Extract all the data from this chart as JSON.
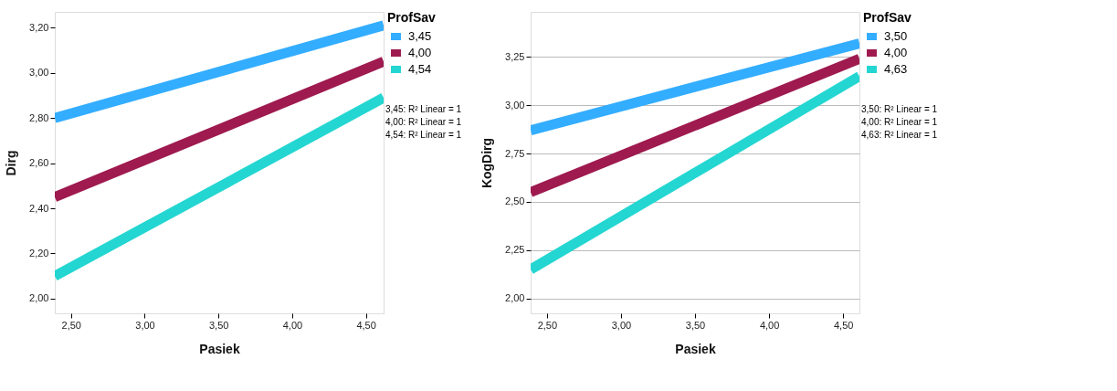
{
  "chart_data": [
    {
      "type": "line",
      "xlabel": "Pasiek",
      "ylabel": "Dirg",
      "legend_title": "ProfSav",
      "legend": "right",
      "grid": false,
      "marker": "none",
      "line_style": "solid",
      "x": [
        2.39,
        4.62
      ],
      "series": [
        {
          "name": "3,45",
          "color": "#33adff",
          "values": [
            2.8,
            3.21
          ]
        },
        {
          "name": "4,00",
          "color": "#9e1a4f",
          "values": [
            2.45,
            3.05
          ]
        },
        {
          "name": "4,54",
          "color": "#24d6d1",
          "values": [
            2.1,
            2.89
          ]
        }
      ],
      "xlim": [
        2.39,
        4.62
      ],
      "ylim": [
        1.935,
        3.27
      ],
      "xticks": [
        {
          "value": 2.5,
          "label": "2,50"
        },
        {
          "value": 3.0,
          "label": "3,00"
        },
        {
          "value": 3.5,
          "label": "3,50"
        },
        {
          "value": 4.0,
          "label": "4,00"
        },
        {
          "value": 4.5,
          "label": "4,50"
        }
      ],
      "yticks": [
        {
          "value": 2.0,
          "label": "2,00"
        },
        {
          "value": 2.2,
          "label": "2,20"
        },
        {
          "value": 2.4,
          "label": "2,40"
        },
        {
          "value": 2.6,
          "label": "2,60"
        },
        {
          "value": 2.8,
          "label": "2,80"
        },
        {
          "value": 3.0,
          "label": "3,00"
        },
        {
          "value": 3.2,
          "label": "3,20"
        }
      ],
      "annotations": [
        "3,45: R² Linear = 1",
        "4,00: R² Linear = 1",
        "4,54: R² Linear = 1"
      ]
    },
    {
      "type": "line",
      "xlabel": "Pasiek",
      "ylabel": "KogDirg",
      "legend_title": "ProfSav",
      "legend": "right",
      "grid": "y",
      "marker": "none",
      "line_style": "solid",
      "x": [
        2.39,
        4.61
      ],
      "series": [
        {
          "name": "3,50",
          "color": "#33adff",
          "values": [
            2.87,
            3.32
          ]
        },
        {
          "name": "4,00",
          "color": "#9e1a4f",
          "values": [
            2.55,
            3.24
          ]
        },
        {
          "name": "4,63",
          "color": "#24d6d1",
          "values": [
            2.15,
            3.15
          ]
        }
      ],
      "xlim": [
        2.39,
        4.61
      ],
      "ylim": [
        1.923,
        3.483
      ],
      "xticks": [
        {
          "value": 2.5,
          "label": "2,50"
        },
        {
          "value": 3.0,
          "label": "3,00"
        },
        {
          "value": 3.5,
          "label": "3,50"
        },
        {
          "value": 4.0,
          "label": "4,00"
        },
        {
          "value": 4.5,
          "label": "4,50"
        }
      ],
      "yticks": [
        {
          "value": 2.0,
          "label": "2,00"
        },
        {
          "value": 2.25,
          "label": "2,25"
        },
        {
          "value": 2.5,
          "label": "2,50"
        },
        {
          "value": 2.75,
          "label": "2,75"
        },
        {
          "value": 3.0,
          "label": "3,00"
        },
        {
          "value": 3.25,
          "label": "3,25"
        }
      ],
      "annotations": [
        "3,50: R² Linear = 1",
        "4,00: R² Linear = 1",
        "4,63: R² Linear = 1"
      ]
    }
  ]
}
